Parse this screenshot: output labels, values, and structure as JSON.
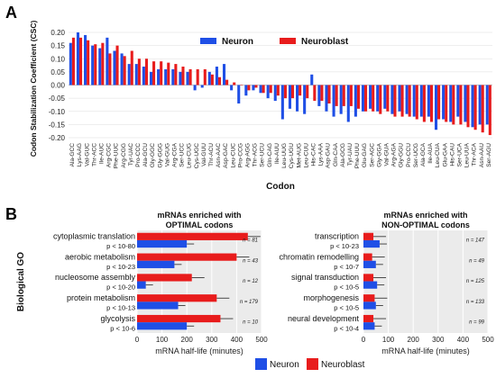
{
  "panels": {
    "a": "A",
    "b": "B"
  },
  "chart_data": [
    {
      "type": "bar",
      "panel": "A",
      "ylabel": "Codon Stabilization Coefficient (CSC)",
      "xlabel": "Codon",
      "ylim": [
        -0.2,
        0.2
      ],
      "yticks": [
        0.2,
        0.15,
        0.1,
        0.05,
        0.0,
        -0.05,
        -0.1,
        -0.15,
        -0.2
      ],
      "ytick_labels": [
        "0.20",
        "0.15",
        "0.10",
        "0.05",
        "0.00",
        "-0.05",
        "-0.10",
        "-0.15",
        "-0.20"
      ],
      "grid": true,
      "legend": "top-right",
      "categories": [
        "Ala-GCC",
        "Lys-AAG",
        "Val-GUC",
        "Thr-ACC",
        "Ile-AUC",
        "Arg-CGC",
        "Phe-UUC",
        "Arg-CGG",
        "Tyr-UAC",
        "Pro-CCC",
        "Ala-GCU",
        "Gly-GGC",
        "Gly-GGG",
        "Val-GUG",
        "Arg-CGA",
        "Ser-UCC",
        "Leu-CUG",
        "Cys-UGC",
        "Val-GUU",
        "Thr-ACU",
        "Asn-AAC",
        "Asp-GAC",
        "Leu-CUC",
        "Pro-CCG",
        "Arg-AGG",
        "Thr-ACG",
        "Ser-UCU",
        "Gln-CAG",
        "Ile-AUU",
        "Leu-UUG",
        "Cys-UGU",
        "Met-AUG",
        "Leu-CUU",
        "His-CAC",
        "Lys-AAA",
        "Asp-GAU",
        "Gln-CAA",
        "Ala-GCG",
        "Tyr-UAU",
        "Phe-UUU",
        "Glu-GAG",
        "Ser-AGC",
        "Gly-GGA",
        "Val-GUA",
        "Arg-AGA",
        "Gly-GGU",
        "Pro-CCU",
        "Ser-UCG",
        "Ala-GCA",
        "Ile-AUA",
        "Leu-CUA",
        "Glu-GAA",
        "His-CAU",
        "Ser-UCA",
        "Leu-UUA",
        "Thr-ACA",
        "Asn-AAU",
        "Ser-AGU"
      ],
      "series": [
        {
          "name": "Neuron",
          "color": "#1f4fe6",
          "values": [
            0.16,
            0.2,
            0.19,
            0.15,
            0.14,
            0.18,
            0.13,
            0.12,
            0.08,
            0.08,
            0.07,
            0.05,
            0.06,
            0.06,
            0.06,
            0.05,
            0.05,
            -0.02,
            -0.01,
            0.05,
            0.07,
            0.08,
            -0.02,
            -0.07,
            -0.04,
            -0.02,
            -0.03,
            -0.05,
            -0.06,
            -0.13,
            -0.09,
            -0.1,
            -0.11,
            0.04,
            -0.08,
            -0.1,
            -0.12,
            -0.11,
            -0.14,
            -0.12,
            -0.1,
            -0.09,
            -0.1,
            -0.09,
            -0.11,
            -0.1,
            -0.11,
            -0.12,
            -0.12,
            -0.12,
            -0.17,
            -0.13,
            -0.14,
            -0.12,
            -0.14,
            -0.16,
            -0.15,
            -0.15
          ]
        },
        {
          "name": "Neuroblast",
          "color": "#e81c1c",
          "values": [
            0.18,
            0.18,
            0.17,
            0.155,
            0.16,
            0.12,
            0.15,
            0.11,
            0.13,
            0.1,
            0.1,
            0.09,
            0.09,
            0.085,
            0.08,
            0.07,
            0.06,
            0.06,
            0.06,
            0.04,
            0.03,
            0.02,
            0.01,
            0.0,
            -0.02,
            -0.01,
            -0.03,
            -0.03,
            -0.04,
            -0.05,
            -0.05,
            -0.04,
            -0.05,
            -0.06,
            -0.06,
            -0.07,
            -0.08,
            -0.08,
            -0.08,
            -0.09,
            -0.1,
            -0.1,
            -0.11,
            -0.1,
            -0.12,
            -0.12,
            -0.12,
            -0.13,
            -0.14,
            -0.14,
            -0.13,
            -0.14,
            -0.15,
            -0.15,
            -0.16,
            -0.17,
            -0.18,
            -0.19
          ]
        }
      ]
    },
    {
      "type": "bar",
      "orientation": "horizontal",
      "panel": "B-left",
      "title": "mRNAs enriched with\nOPTIMAL codons",
      "xlabel": "mRNA half-life (minutes)",
      "ylabel": "Biological GO",
      "xlim": [
        0,
        500
      ],
      "xticks": [
        0,
        100,
        200,
        300,
        400,
        500
      ],
      "grid": true,
      "categories": [
        "cytoplasmic translation",
        "aerobic metabolism",
        "nucleosome assembly",
        "protein metabolism",
        "glycolysis"
      ],
      "pvalues": [
        "p < 10-80",
        "p < 10-23",
        "p < 10-20",
        "p < 10-13",
        "p < 10-6"
      ],
      "counts": [
        "n = 81",
        "n = 43",
        "n = 12",
        "n = 179",
        "n = 10"
      ],
      "series": [
        {
          "name": "Neuroblast",
          "color": "#e81c1c",
          "values": [
            445,
            400,
            220,
            320,
            335
          ]
        },
        {
          "name": "Neuron",
          "color": "#1f4fe6",
          "values": [
            200,
            150,
            35,
            165,
            200
          ]
        }
      ]
    },
    {
      "type": "bar",
      "orientation": "horizontal",
      "panel": "B-right",
      "title": "mRNAs enriched with\nNON-OPTIMAL codons",
      "xlabel": "mRNA half-life (minutes)",
      "xlim": [
        0,
        500
      ],
      "xticks": [
        0,
        100,
        200,
        300,
        400,
        500
      ],
      "grid": true,
      "categories": [
        "transcription",
        "chromatin remodelling",
        "signal transduction",
        "morphogenesis",
        "neural development"
      ],
      "pvalues": [
        "p < 10-23",
        "p < 10-7",
        "p < 10-5",
        "p < 10-5",
        "p < 10-4"
      ],
      "counts": [
        "n = 147",
        "n = 49",
        "n = 125",
        "n = 133",
        "n = 99"
      ],
      "series": [
        {
          "name": "Neuroblast",
          "color": "#e81c1c",
          "values": [
            40,
            35,
            40,
            45,
            40
          ]
        },
        {
          "name": "Neuron",
          "color": "#1f4fe6",
          "values": [
            65,
            50,
            55,
            50,
            45
          ]
        }
      ]
    }
  ],
  "legend_bottom": [
    {
      "name": "Neuron",
      "color": "#1f4fe6"
    },
    {
      "name": "Neuroblast",
      "color": "#e81c1c"
    }
  ],
  "colors": {
    "neuron": "#1f4fe6",
    "neuroblast": "#e81c1c",
    "plot_bg": "#ebebeb",
    "grid": "#ffffff"
  }
}
